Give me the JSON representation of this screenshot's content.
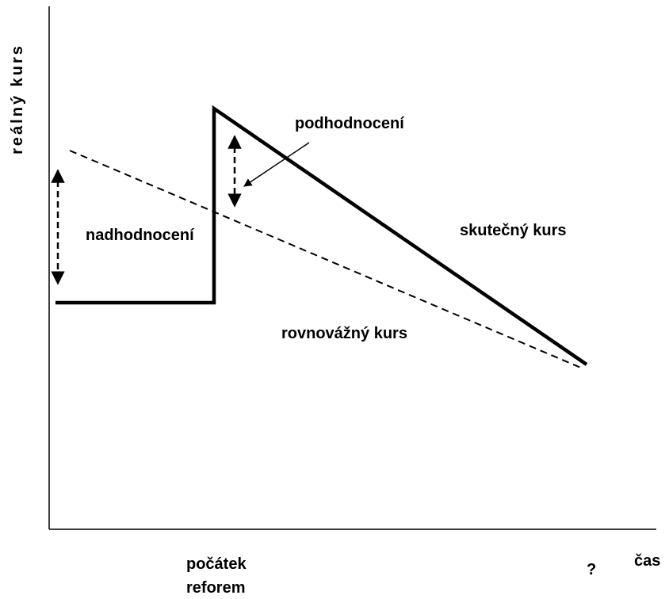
{
  "axis_labels": {
    "y": "reálný kurs",
    "x": "čas"
  },
  "annotations": {
    "undervaluation": "podhodnocení",
    "overvaluation": "nadhodnocení",
    "actual_rate": "skutečný kurs",
    "equilibrium_rate": "rovnovážný kurs",
    "question": "?"
  },
  "reform_start": [
    "počátek",
    "reforem"
  ]
}
